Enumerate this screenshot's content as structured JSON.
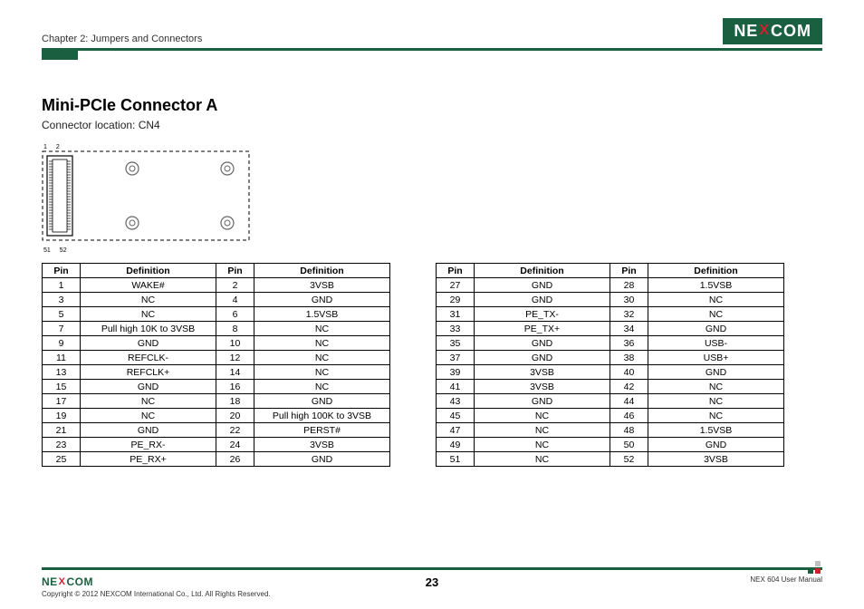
{
  "header": {
    "chapter": "Chapter 2: Jumpers and Connectors",
    "logo_text_1": "NE",
    "logo_x": "X",
    "logo_text_2": "COM"
  },
  "page": {
    "title": "Mini-PCIe Connector A",
    "subtitle": "Connector location: CN4"
  },
  "diagram": {
    "pin_labels": {
      "top_left": "1",
      "top_right": "2",
      "bottom_left": "51",
      "bottom_right": "52"
    },
    "outline_color": "#000000",
    "screw_color": "#888888"
  },
  "pin_table": {
    "headers": [
      "Pin",
      "Definition",
      "Pin",
      "Definition"
    ],
    "left_rows": [
      [
        "1",
        "WAKE#",
        "2",
        "3VSB"
      ],
      [
        "3",
        "NC",
        "4",
        "GND"
      ],
      [
        "5",
        "NC",
        "6",
        "1.5VSB"
      ],
      [
        "7",
        "Pull high 10K to 3VSB",
        "8",
        "NC"
      ],
      [
        "9",
        "GND",
        "10",
        "NC"
      ],
      [
        "11",
        "REFCLK-",
        "12",
        "NC"
      ],
      [
        "13",
        "REFCLK+",
        "14",
        "NC"
      ],
      [
        "15",
        "GND",
        "16",
        "NC"
      ],
      [
        "17",
        "NC",
        "18",
        "GND"
      ],
      [
        "19",
        "NC",
        "20",
        "Pull high 100K to 3VSB"
      ],
      [
        "21",
        "GND",
        "22",
        "PERST#"
      ],
      [
        "23",
        "PE_RX-",
        "24",
        "3VSB"
      ],
      [
        "25",
        "PE_RX+",
        "26",
        "GND"
      ]
    ],
    "right_rows": [
      [
        "27",
        "GND",
        "28",
        "1.5VSB"
      ],
      [
        "29",
        "GND",
        "30",
        "NC"
      ],
      [
        "31",
        "PE_TX-",
        "32",
        "NC"
      ],
      [
        "33",
        "PE_TX+",
        "34",
        "GND"
      ],
      [
        "35",
        "GND",
        "36",
        "USB-"
      ],
      [
        "37",
        "GND",
        "38",
        "USB+"
      ],
      [
        "39",
        "3VSB",
        "40",
        "GND"
      ],
      [
        "41",
        "3VSB",
        "42",
        "NC"
      ],
      [
        "43",
        "GND",
        "44",
        "NC"
      ],
      [
        "45",
        "NC",
        "46",
        "NC"
      ],
      [
        "47",
        "NC",
        "48",
        "1.5VSB"
      ],
      [
        "49",
        "NC",
        "50",
        "GND"
      ],
      [
        "51",
        "NC",
        "52",
        "3VSB"
      ]
    ]
  },
  "footer": {
    "logo_text_1": "NE",
    "logo_x": "X",
    "logo_text_2": "COM",
    "copyright": "Copyright © 2012 NEXCOM International Co., Ltd. All Rights Reserved.",
    "page_number": "23",
    "manual": "NEX 604 User Manual"
  },
  "colors": {
    "brand_green": "#1a5f3f",
    "brand_red": "#d0202e",
    "text": "#000000",
    "border": "#000000"
  }
}
